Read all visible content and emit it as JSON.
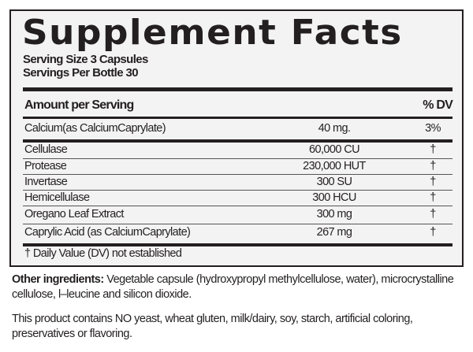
{
  "title": "Supplement Facts",
  "serving_size": "Serving Size  3 Capsules",
  "servings_per_container": "Servings Per Bottle  30",
  "header": {
    "amount": "Amount per Serving",
    "dv": "% DV"
  },
  "rows": [
    {
      "name": "Calcium(as  CalciumCaprylate)",
      "amount": "40 mg.",
      "dv": "3%"
    },
    {
      "name": "Cellulase",
      "amount": "60,000 CU",
      "dv": "†"
    },
    {
      "name": "Protease",
      "amount": "230,000 HUT",
      "dv": "†"
    },
    {
      "name": "Invertase",
      "amount": "300  SU",
      "dv": "†"
    },
    {
      "name": "Hemicellulase",
      "amount": "300 HCU",
      "dv": "†"
    },
    {
      "name": "Oregano Leaf Extract",
      "amount": "300 mg",
      "dv": "†"
    },
    {
      "name": "Caprylic Acid (as CalciumCaprylate)",
      "amount": "267 mg",
      "dv": "†"
    }
  ],
  "footnote": "† Daily Value (DV) not established",
  "other_label": "Other ingredients:",
  "other_text": " Vegetable capsule (hydroxypropyl methylcellulose, water), microcrystalline cellulose, l–leucine and silicon dioxide.",
  "disclaimer": "This product contains NO yeast,  wheat gluten, milk/dairy, soy, starch, artificial coloring, preservatives  or flavoring."
}
